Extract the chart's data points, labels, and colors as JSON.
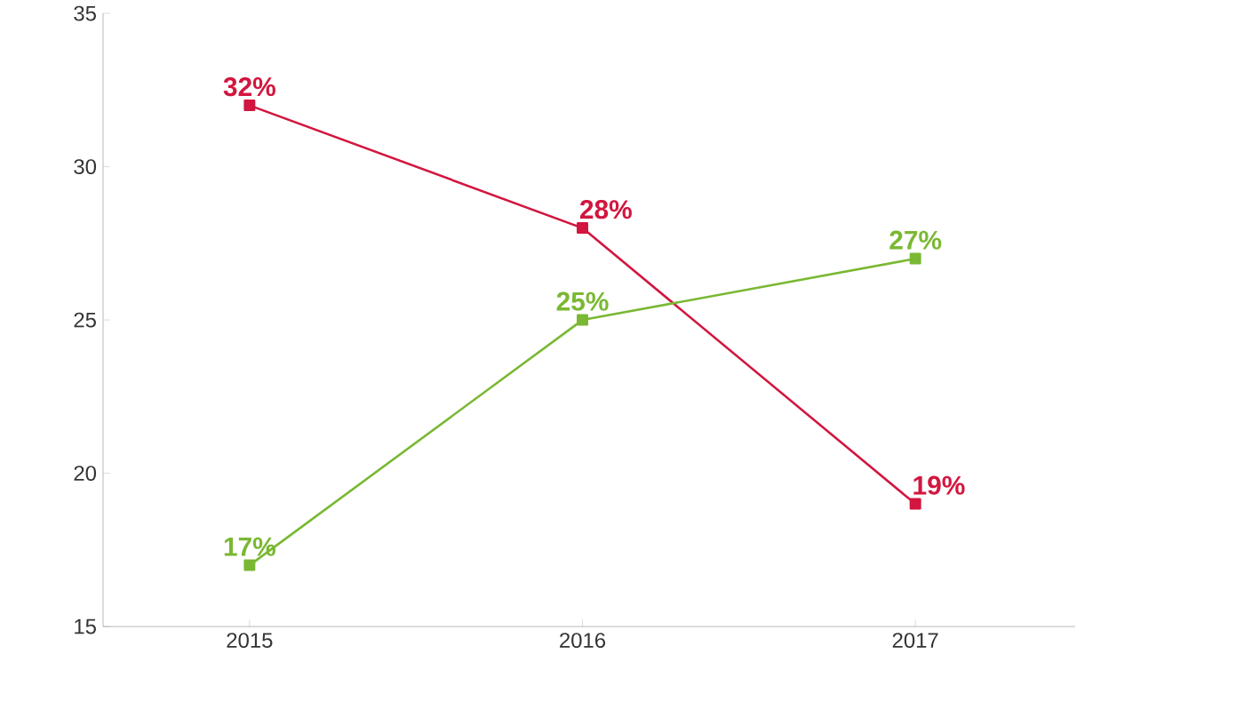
{
  "chart_data": {
    "type": "line",
    "categories": [
      "2015",
      "2016",
      "2017"
    ],
    "ylim": [
      15,
      35
    ],
    "yticks": [
      15,
      20,
      25,
      30,
      35
    ],
    "marker": "square",
    "series": [
      {
        "color": "#d2163f",
        "values": [
          32,
          28,
          19
        ],
        "value_labels": [
          "32%",
          "28%",
          "19%"
        ]
      },
      {
        "color": "#7ab833",
        "values": [
          17,
          25,
          27
        ],
        "value_labels": [
          "17%",
          "25%",
          "27%"
        ]
      }
    ]
  }
}
